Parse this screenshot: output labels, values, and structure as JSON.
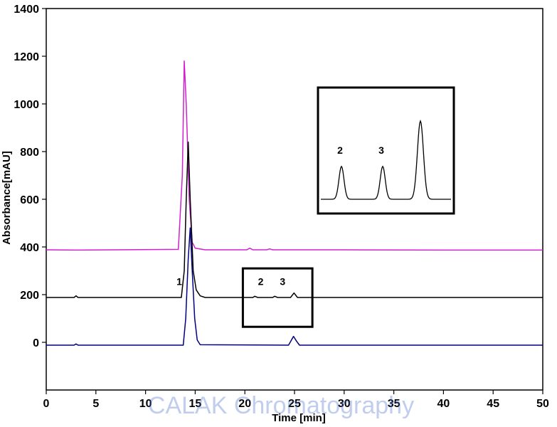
{
  "chart_data": {
    "type": "line",
    "title": "",
    "xlabel": "Time [min]",
    "ylabel": "Absorbance[mAU]",
    "xlim": [
      0,
      50
    ],
    "ylim": [
      -200,
      1400
    ],
    "x_ticks": [
      0,
      5,
      10,
      15,
      20,
      25,
      30,
      35,
      40,
      45,
      50
    ],
    "y_ticks": [
      0,
      200,
      400,
      600,
      800,
      1000,
      1200,
      1400
    ],
    "grid": false,
    "legend": "none",
    "series": [
      {
        "color": "#d020d0",
        "baseline": 388,
        "points": [
          [
            0,
            388
          ],
          [
            3,
            387
          ],
          [
            7,
            388
          ],
          [
            13.3,
            390
          ],
          [
            13.7,
            700
          ],
          [
            13.9,
            1180
          ],
          [
            14.1,
            1000
          ],
          [
            14.4,
            600
          ],
          [
            14.7,
            420
          ],
          [
            15,
            395
          ],
          [
            16,
            388
          ],
          [
            20.2,
            388
          ],
          [
            20.5,
            395
          ],
          [
            20.8,
            388
          ],
          [
            22.2,
            388
          ],
          [
            22.5,
            392
          ],
          [
            22.8,
            388
          ],
          [
            30,
            388
          ],
          [
            40,
            387
          ],
          [
            50,
            387
          ]
        ]
      },
      {
        "color": "#000000",
        "baseline": 188,
        "points": [
          [
            0,
            188
          ],
          [
            2.8,
            188
          ],
          [
            3,
            195
          ],
          [
            3.2,
            188
          ],
          [
            7,
            188
          ],
          [
            13.6,
            188
          ],
          [
            13.9,
            300
          ],
          [
            14.1,
            600
          ],
          [
            14.3,
            840
          ],
          [
            14.5,
            600
          ],
          [
            14.8,
            300
          ],
          [
            15.1,
            220
          ],
          [
            15.5,
            195
          ],
          [
            16,
            188
          ],
          [
            20.8,
            188
          ],
          [
            21,
            193
          ],
          [
            21.3,
            188
          ],
          [
            22.8,
            188
          ],
          [
            23,
            193
          ],
          [
            23.3,
            188
          ],
          [
            24.6,
            188
          ],
          [
            24.95,
            207
          ],
          [
            25.3,
            188
          ],
          [
            30,
            188
          ],
          [
            40,
            188
          ],
          [
            50,
            188
          ]
        ]
      },
      {
        "color": "#000080",
        "baseline": -12,
        "points": [
          [
            0,
            -12
          ],
          [
            2.8,
            -12
          ],
          [
            3,
            -7
          ],
          [
            3.2,
            -12
          ],
          [
            13.8,
            -12
          ],
          [
            14.05,
            100
          ],
          [
            14.3,
            350
          ],
          [
            14.5,
            480
          ],
          [
            14.7,
            300
          ],
          [
            14.95,
            100
          ],
          [
            15.2,
            10
          ],
          [
            15.5,
            -10
          ],
          [
            24.4,
            -12
          ],
          [
            24.7,
            10
          ],
          [
            24.9,
            25
          ],
          [
            25.2,
            5
          ],
          [
            25.5,
            -12
          ],
          [
            30,
            -12
          ],
          [
            40,
            -12
          ],
          [
            50,
            -12
          ]
        ]
      }
    ],
    "annotations": [
      {
        "text": "1",
        "x": 13.4,
        "y": 255
      },
      {
        "text": "2",
        "x": 21.6,
        "y": 255
      },
      {
        "text": "3",
        "x": 23.8,
        "y": 255
      }
    ],
    "zoom_box": {
      "x0": 19.8,
      "x1": 26.8,
      "y0": 65,
      "y1": 310
    },
    "inset": {
      "labels": [
        {
          "text": "2",
          "peak": 0
        },
        {
          "text": "3",
          "peak": 1
        }
      ],
      "peaks": [
        0.42,
        0.42,
        1.0
      ]
    }
  },
  "watermark": "CALAK Chromatography"
}
